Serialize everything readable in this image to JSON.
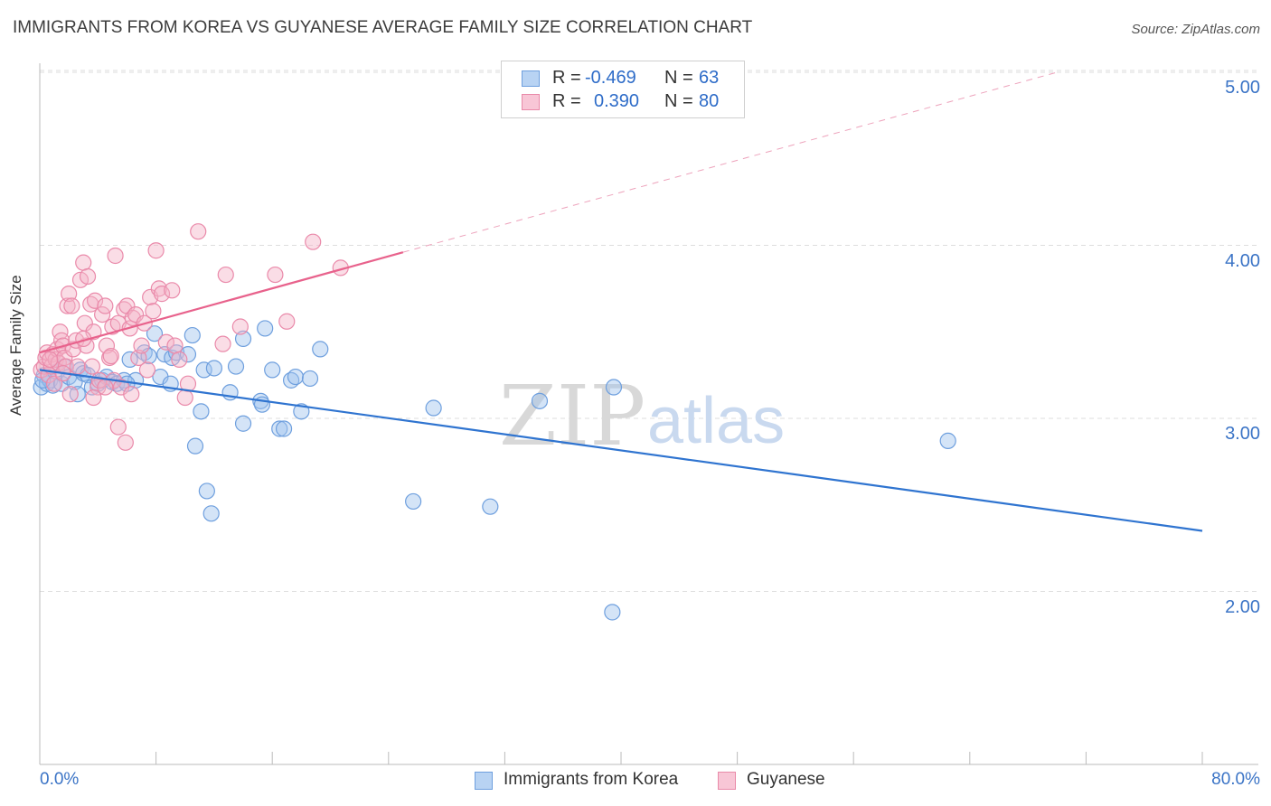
{
  "title": "IMMIGRANTS FROM KOREA VS GUYANESE AVERAGE FAMILY SIZE CORRELATION CHART",
  "source": "Source: ZipAtlas.com",
  "watermark": {
    "zip": "ZIP",
    "atlas": "atlas"
  },
  "colors": {
    "blue": "#2f74d0",
    "blue_fill": "#9fc3ee",
    "pink": "#e8628c",
    "pink_fill": "#f5b3c8",
    "tick_label": "#3b74c6",
    "grid": "#dddddd"
  },
  "legend": {
    "rows": [
      {
        "r_label": "R =",
        "r_value": "-0.469",
        "n_label": "N =",
        "n_value": "63"
      },
      {
        "r_label": "R =",
        "r_value": "0.390",
        "n_label": "N =",
        "n_value": "80"
      }
    ]
  },
  "chart_data": {
    "type": "scatter",
    "title": "IMMIGRANTS FROM KOREA VS GUYANESE AVERAGE FAMILY SIZE CORRELATION CHART",
    "xlabel": "",
    "ylabel": "Average Family Size",
    "xlim": [
      0,
      80
    ],
    "ylim": [
      1.0,
      5.1
    ],
    "x_tick_labels": [
      "0.0%",
      "80.0%"
    ],
    "y_ticks": [
      2.0,
      3.0,
      4.0,
      5.0
    ],
    "y_tick_labels": [
      "2.00",
      "3.00",
      "4.00",
      "5.00"
    ],
    "grid": "horizontal dashed",
    "legend_position": "top-center",
    "series": [
      {
        "name": "Immigrants from Korea",
        "color": "#2f74d0",
        "trend": {
          "x": [
            0,
            80
          ],
          "y": [
            3.28,
            2.35
          ]
        },
        "points": [
          [
            0.1,
            3.18
          ],
          [
            0.3,
            3.25
          ],
          [
            0.5,
            3.2
          ],
          [
            0.7,
            3.22
          ],
          [
            0.9,
            3.19
          ],
          [
            1.2,
            3.27
          ],
          [
            1.5,
            3.2
          ],
          [
            1.7,
            3.3
          ],
          [
            2.0,
            3.24
          ],
          [
            2.4,
            3.21
          ],
          [
            2.8,
            3.28
          ],
          [
            3.0,
            3.26
          ],
          [
            3.3,
            3.25
          ],
          [
            3.6,
            3.18
          ],
          [
            4.0,
            3.2
          ],
          [
            4.3,
            3.22
          ],
          [
            4.6,
            3.24
          ],
          [
            5.0,
            3.21
          ],
          [
            5.3,
            3.2
          ],
          [
            5.8,
            3.22
          ],
          [
            6.2,
            3.34
          ],
          [
            6.6,
            3.22
          ],
          [
            7.2,
            3.38
          ],
          [
            7.5,
            3.36
          ],
          [
            7.9,
            3.49
          ],
          [
            8.3,
            3.24
          ],
          [
            8.6,
            3.37
          ],
          [
            9.1,
            3.35
          ],
          [
            9.4,
            3.38
          ],
          [
            10.2,
            3.37
          ],
          [
            10.5,
            3.48
          ],
          [
            11.3,
            3.28
          ],
          [
            12.0,
            3.29
          ],
          [
            13.1,
            3.15
          ],
          [
            13.5,
            3.3
          ],
          [
            14.0,
            3.46
          ],
          [
            15.2,
            3.1
          ],
          [
            15.5,
            3.52
          ],
          [
            16.0,
            3.28
          ],
          [
            17.3,
            3.22
          ],
          [
            17.6,
            3.24
          ],
          [
            18.6,
            3.23
          ],
          [
            19.3,
            3.4
          ],
          [
            9.0,
            3.2
          ],
          [
            11.1,
            3.04
          ],
          [
            14.0,
            2.97
          ],
          [
            15.3,
            3.08
          ],
          [
            16.5,
            2.94
          ],
          [
            16.8,
            2.94
          ],
          [
            18.0,
            3.04
          ],
          [
            10.7,
            2.84
          ],
          [
            11.5,
            2.58
          ],
          [
            11.8,
            2.45
          ],
          [
            34.4,
            3.1
          ],
          [
            27.1,
            3.06
          ],
          [
            39.5,
            3.18
          ],
          [
            62.5,
            2.87
          ],
          [
            25.7,
            2.52
          ],
          [
            31.0,
            2.49
          ],
          [
            39.4,
            1.88
          ],
          [
            0.2,
            3.22
          ],
          [
            2.6,
            3.14
          ],
          [
            6.0,
            3.2
          ]
        ]
      },
      {
        "name": "Guyanese",
        "color": "#e8628c",
        "trend": {
          "x": [
            0,
            25
          ],
          "y": [
            3.38,
            3.96
          ]
        },
        "trend_extended": {
          "x": [
            25,
            70
          ],
          "y": [
            3.96,
            5.0
          ]
        },
        "points": [
          [
            0.1,
            3.28
          ],
          [
            0.3,
            3.3
          ],
          [
            0.4,
            3.35
          ],
          [
            0.5,
            3.38
          ],
          [
            0.6,
            3.25
          ],
          [
            0.8,
            3.3
          ],
          [
            0.9,
            3.37
          ],
          [
            1.1,
            3.34
          ],
          [
            1.2,
            3.4
          ],
          [
            1.3,
            3.32
          ],
          [
            1.4,
            3.5
          ],
          [
            1.5,
            3.45
          ],
          [
            1.6,
            3.42
          ],
          [
            1.7,
            3.35
          ],
          [
            1.8,
            3.3
          ],
          [
            1.9,
            3.65
          ],
          [
            2.0,
            3.72
          ],
          [
            2.2,
            3.65
          ],
          [
            2.3,
            3.4
          ],
          [
            2.5,
            3.45
          ],
          [
            2.6,
            3.3
          ],
          [
            2.8,
            3.8
          ],
          [
            3.0,
            3.9
          ],
          [
            3.1,
            3.55
          ],
          [
            3.2,
            3.42
          ],
          [
            3.3,
            3.82
          ],
          [
            3.5,
            3.66
          ],
          [
            3.6,
            3.3
          ],
          [
            3.7,
            3.5
          ],
          [
            3.8,
            3.68
          ],
          [
            4.0,
            3.18
          ],
          [
            4.1,
            3.22
          ],
          [
            4.3,
            3.6
          ],
          [
            4.5,
            3.65
          ],
          [
            4.6,
            3.42
          ],
          [
            4.8,
            3.35
          ],
          [
            5.0,
            3.53
          ],
          [
            5.1,
            3.22
          ],
          [
            5.2,
            3.94
          ],
          [
            5.4,
            3.55
          ],
          [
            5.6,
            3.18
          ],
          [
            5.8,
            3.63
          ],
          [
            6.0,
            3.65
          ],
          [
            6.2,
            3.52
          ],
          [
            6.4,
            3.58
          ],
          [
            6.6,
            3.6
          ],
          [
            6.8,
            3.35
          ],
          [
            7.0,
            3.42
          ],
          [
            7.2,
            3.55
          ],
          [
            7.4,
            3.28
          ],
          [
            7.6,
            3.7
          ],
          [
            7.8,
            3.62
          ],
          [
            8.0,
            3.97
          ],
          [
            8.2,
            3.75
          ],
          [
            8.4,
            3.72
          ],
          [
            8.7,
            3.44
          ],
          [
            9.1,
            3.74
          ],
          [
            9.3,
            3.42
          ],
          [
            9.6,
            3.34
          ],
          [
            10.0,
            3.12
          ],
          [
            10.2,
            3.2
          ],
          [
            10.9,
            4.08
          ],
          [
            12.6,
            3.43
          ],
          [
            12.8,
            3.83
          ],
          [
            13.8,
            3.53
          ],
          [
            16.2,
            3.83
          ],
          [
            17.0,
            3.56
          ],
          [
            18.8,
            4.02
          ],
          [
            20.7,
            3.87
          ],
          [
            5.4,
            2.95
          ],
          [
            5.9,
            2.86
          ],
          [
            6.3,
            3.14
          ],
          [
            2.1,
            3.14
          ],
          [
            3.7,
            3.12
          ],
          [
            4.5,
            3.18
          ],
          [
            1.0,
            3.2
          ],
          [
            1.6,
            3.26
          ],
          [
            0.7,
            3.34
          ],
          [
            3.0,
            3.46
          ],
          [
            4.9,
            3.36
          ]
        ]
      }
    ]
  }
}
